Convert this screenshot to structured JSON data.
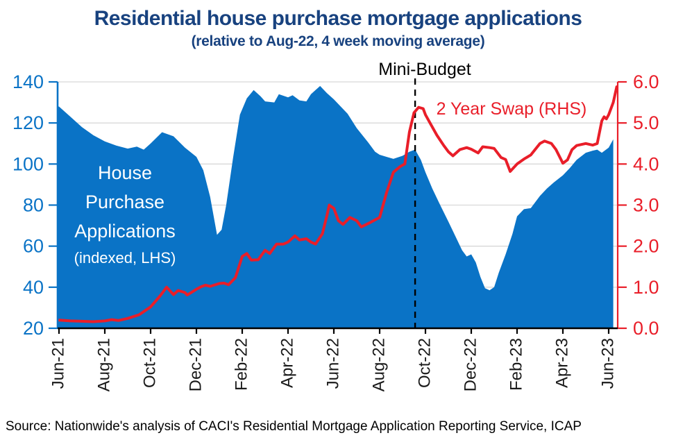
{
  "title": "Residential house purchase mortgage applications",
  "subtitle": "(relative to Aug-22, 4 week moving average)",
  "source": "Source: Nationwide's analysis of CACI's Residential Mortgage Application Reporting Service, ICAP",
  "annotations": {
    "mini_budget": "Mini-Budget",
    "swap_label": "2 Year Swap (RHS)",
    "area_label_line1": "House",
    "area_label_line2": "Purchase",
    "area_label_line3": "Applications",
    "area_label_line4": "(indexed, LHS)"
  },
  "colors": {
    "area_blue": "#0a73c6",
    "line_red": "#e91e29",
    "title_navy": "#18427f",
    "grid_gray": "#d8d8d8",
    "axis_black": "#1a1a1a"
  },
  "chart_data": {
    "type": "area",
    "title": "Residential house purchase mortgage applications",
    "subtitle": "(relative to Aug-22, 4 week moving average)",
    "x_unit": "months since Jun-21",
    "x_tick_months": [
      0,
      2,
      4,
      6,
      8,
      10,
      12,
      14,
      16,
      18,
      20,
      22,
      24
    ],
    "x_tick_labels": [
      "Jun-21",
      "Aug-21",
      "Oct-21",
      "Dec-21",
      "Feb-22",
      "Apr-22",
      "Jun-22",
      "Aug-22",
      "Oct-22",
      "Dec-22",
      "Feb-23",
      "Apr-23",
      "Jun-23"
    ],
    "left_axis": {
      "label": "House Purchase Applications (indexed, LHS)",
      "range": [
        20,
        140
      ],
      "ticks": [
        20,
        40,
        60,
        80,
        100,
        120,
        140
      ]
    },
    "right_axis": {
      "label": "2 Year Swap (RHS)",
      "range": [
        0,
        6
      ],
      "ticks": [
        "0.0",
        "1.0",
        "2.0",
        "3.0",
        "4.0",
        "5.0",
        "6.0"
      ]
    },
    "grid": "horizontal-only",
    "legend_position": "in-plot annotations",
    "events": [
      {
        "label": "Mini-Budget",
        "month": 15.55,
        "style": "vertical-dashed-line"
      }
    ],
    "series": [
      {
        "name": "House Purchase Applications (indexed, LHS)",
        "type": "area",
        "axis": "left",
        "color": "#0a73c6",
        "points": [
          [
            0,
            128
          ],
          [
            0.5,
            123
          ],
          [
            1,
            118
          ],
          [
            1.5,
            114
          ],
          [
            2,
            111
          ],
          [
            2.5,
            109
          ],
          [
            3,
            107.5
          ],
          [
            3.4,
            108.5
          ],
          [
            3.7,
            107
          ],
          [
            4,
            110
          ],
          [
            4.5,
            115.5
          ],
          [
            5,
            113.5
          ],
          [
            5.5,
            108
          ],
          [
            6,
            103.5
          ],
          [
            6.3,
            97
          ],
          [
            6.6,
            84
          ],
          [
            6.9,
            65.5
          ],
          [
            7.1,
            68
          ],
          [
            7.3,
            80
          ],
          [
            7.6,
            103
          ],
          [
            7.9,
            124
          ],
          [
            8.2,
            132
          ],
          [
            8.5,
            136
          ],
          [
            8.8,
            133
          ],
          [
            9,
            130.5
          ],
          [
            9.4,
            130
          ],
          [
            9.6,
            134
          ],
          [
            10,
            132.5
          ],
          [
            10.2,
            133.5
          ],
          [
            10.5,
            131
          ],
          [
            10.8,
            130.5
          ],
          [
            11,
            134
          ],
          [
            11.2,
            136
          ],
          [
            11.4,
            138
          ],
          [
            11.7,
            134.5
          ],
          [
            12,
            131.5
          ],
          [
            12.3,
            128
          ],
          [
            12.6,
            124.5
          ],
          [
            13,
            117.5
          ],
          [
            13.5,
            110.5
          ],
          [
            13.8,
            106
          ],
          [
            14,
            104.5
          ],
          [
            14.3,
            103.5
          ],
          [
            14.6,
            102.5
          ],
          [
            15,
            104
          ],
          [
            15.3,
            106
          ],
          [
            15.55,
            107
          ],
          [
            15.8,
            102
          ],
          [
            16,
            96
          ],
          [
            16.3,
            88
          ],
          [
            16.6,
            81
          ],
          [
            17,
            72
          ],
          [
            17.3,
            65
          ],
          [
            17.6,
            58
          ],
          [
            17.8,
            55
          ],
          [
            18,
            56
          ],
          [
            18.2,
            52
          ],
          [
            18.4,
            45
          ],
          [
            18.6,
            39.5
          ],
          [
            18.8,
            38.5
          ],
          [
            19,
            40
          ],
          [
            19.2,
            47
          ],
          [
            19.5,
            56
          ],
          [
            19.8,
            66
          ],
          [
            20,
            74.5
          ],
          [
            20.3,
            78
          ],
          [
            20.6,
            78.5
          ],
          [
            21,
            84.5
          ],
          [
            21.3,
            88
          ],
          [
            21.6,
            91
          ],
          [
            22,
            94.5
          ],
          [
            22.3,
            98
          ],
          [
            22.6,
            102
          ],
          [
            23,
            105.5
          ],
          [
            23.3,
            106.5
          ],
          [
            23.5,
            107
          ],
          [
            23.7,
            105.5
          ],
          [
            24,
            108
          ],
          [
            24.2,
            112
          ]
        ]
      },
      {
        "name": "2 Year Swap (RHS)",
        "type": "line",
        "axis": "right",
        "color": "#e91e29",
        "points": [
          [
            0,
            0.2
          ],
          [
            0.5,
            0.18
          ],
          [
            1,
            0.17
          ],
          [
            1.5,
            0.16
          ],
          [
            2,
            0.18
          ],
          [
            2.3,
            0.21
          ],
          [
            2.6,
            0.19
          ],
          [
            3,
            0.24
          ],
          [
            3.5,
            0.33
          ],
          [
            4,
            0.52
          ],
          [
            4.4,
            0.78
          ],
          [
            4.7,
            1.0
          ],
          [
            5,
            0.82
          ],
          [
            5.2,
            0.92
          ],
          [
            5.5,
            0.87
          ],
          [
            5.6,
            0.81
          ],
          [
            6,
            0.95
          ],
          [
            6.2,
            1.01
          ],
          [
            6.4,
            1.05
          ],
          [
            6.6,
            1.02
          ],
          [
            7,
            1.09
          ],
          [
            7.2,
            1.1
          ],
          [
            7.4,
            1.06
          ],
          [
            7.7,
            1.23
          ],
          [
            8,
            1.75
          ],
          [
            8.2,
            1.82
          ],
          [
            8.4,
            1.66
          ],
          [
            8.7,
            1.67
          ],
          [
            9,
            1.9
          ],
          [
            9.2,
            1.82
          ],
          [
            9.5,
            2.05
          ],
          [
            9.8,
            2.05
          ],
          [
            10,
            2.1
          ],
          [
            10.3,
            2.25
          ],
          [
            10.5,
            2.15
          ],
          [
            10.8,
            2.18
          ],
          [
            11,
            2.1
          ],
          [
            11.2,
            2.05
          ],
          [
            11.5,
            2.3
          ],
          [
            11.7,
            2.75
          ],
          [
            11.8,
            3.0
          ],
          [
            12,
            2.92
          ],
          [
            12.2,
            2.62
          ],
          [
            12.4,
            2.53
          ],
          [
            12.7,
            2.7
          ],
          [
            13,
            2.62
          ],
          [
            13.2,
            2.47
          ],
          [
            13.6,
            2.58
          ],
          [
            14,
            2.7
          ],
          [
            14.3,
            3.3
          ],
          [
            14.6,
            3.8
          ],
          [
            14.9,
            3.94
          ],
          [
            15.1,
            4.0
          ],
          [
            15.3,
            4.78
          ],
          [
            15.5,
            5.25
          ],
          [
            15.7,
            5.38
          ],
          [
            15.9,
            5.35
          ],
          [
            16,
            5.2
          ],
          [
            16.2,
            5.0
          ],
          [
            16.5,
            4.7
          ],
          [
            16.8,
            4.45
          ],
          [
            17,
            4.3
          ],
          [
            17.2,
            4.2
          ],
          [
            17.5,
            4.35
          ],
          [
            17.8,
            4.4
          ],
          [
            18,
            4.36
          ],
          [
            18.3,
            4.27
          ],
          [
            18.5,
            4.42
          ],
          [
            18.8,
            4.4
          ],
          [
            19,
            4.38
          ],
          [
            19.3,
            4.16
          ],
          [
            19.5,
            4.11
          ],
          [
            19.7,
            3.82
          ],
          [
            20,
            4.0
          ],
          [
            20.3,
            4.12
          ],
          [
            20.6,
            4.22
          ],
          [
            21,
            4.5
          ],
          [
            21.2,
            4.56
          ],
          [
            21.5,
            4.5
          ],
          [
            21.7,
            4.35
          ],
          [
            22,
            4.02
          ],
          [
            22.2,
            4.1
          ],
          [
            22.4,
            4.35
          ],
          [
            22.6,
            4.45
          ],
          [
            23,
            4.5
          ],
          [
            23.3,
            4.46
          ],
          [
            23.5,
            4.5
          ],
          [
            23.7,
            5.05
          ],
          [
            23.8,
            5.15
          ],
          [
            23.9,
            5.1
          ],
          [
            24,
            5.2
          ],
          [
            24.2,
            5.5
          ],
          [
            24.35,
            5.88
          ]
        ]
      }
    ]
  }
}
